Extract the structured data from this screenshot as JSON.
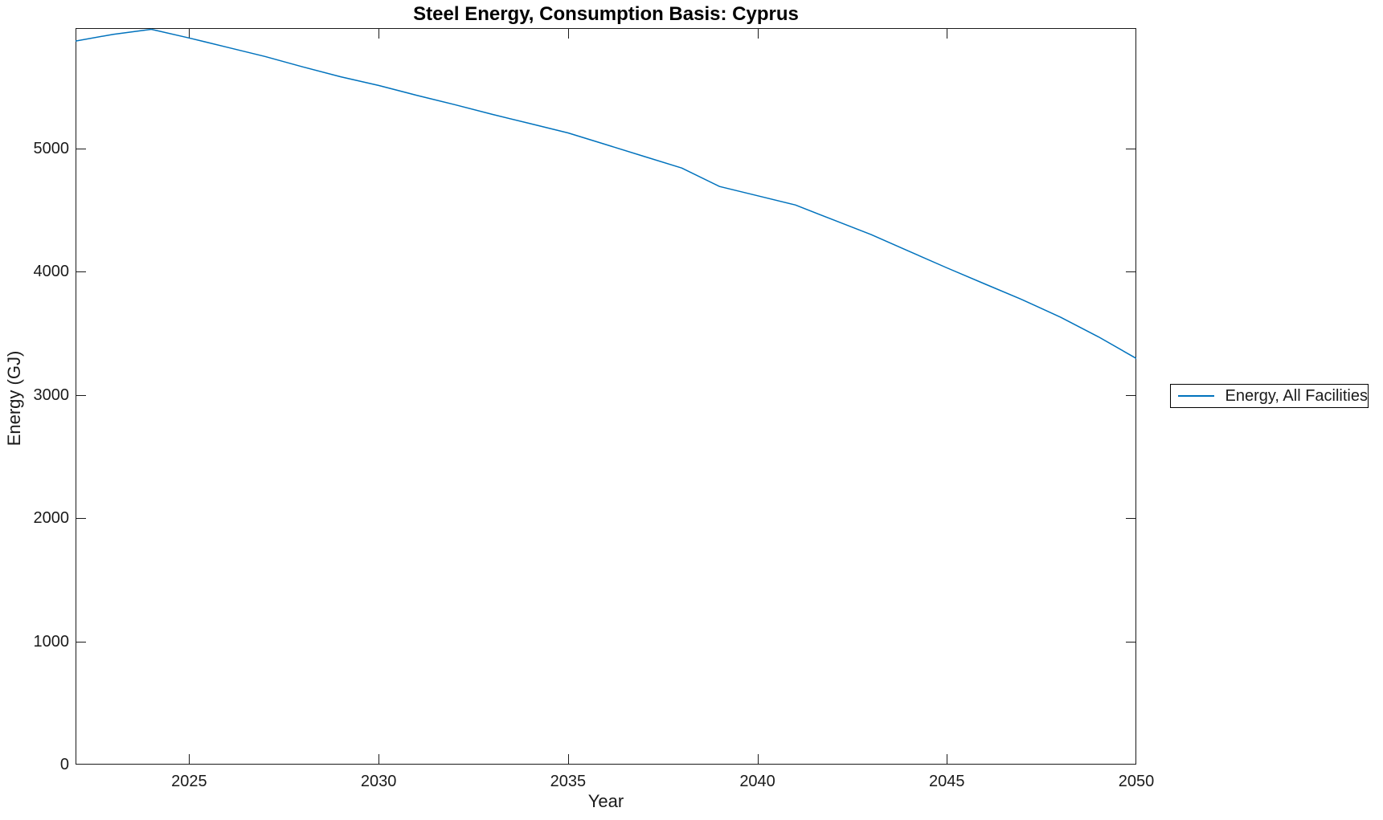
{
  "figure": {
    "title": "Steel Energy, Consumption Basis: Cyprus"
  },
  "chart_data": {
    "type": "line",
    "title": "Steel Energy, Consumption Basis: Cyprus",
    "xlabel": "Year",
    "ylabel": "Energy (GJ)",
    "xlim": [
      2022,
      2050
    ],
    "ylim": [
      0,
      5975
    ],
    "xticks": [
      2025,
      2030,
      2035,
      2040,
      2045,
      2050
    ],
    "yticks": [
      0,
      1000,
      2000,
      3000,
      4000,
      5000
    ],
    "grid": false,
    "legend_position": "outside-right",
    "line_color": "#0072BD",
    "axis_color": "#1a1a1a",
    "series": [
      {
        "name": "Energy, All Facilities",
        "x": [
          2022,
          2023,
          2024,
          2025,
          2026,
          2027,
          2028,
          2029,
          2030,
          2031,
          2032,
          2033,
          2034,
          2035,
          2036,
          2037,
          2038,
          2039,
          2040,
          2041,
          2042,
          2043,
          2044,
          2045,
          2046,
          2047,
          2048,
          2049,
          2050
        ],
        "values": [
          5870,
          5925,
          5965,
          5895,
          5820,
          5745,
          5660,
          5580,
          5510,
          5430,
          5355,
          5275,
          5200,
          5125,
          5030,
          4935,
          4840,
          4690,
          4615,
          4540,
          4420,
          4300,
          4165,
          4030,
          3900,
          3770,
          3630,
          3470,
          3295
        ]
      }
    ]
  },
  "legend": {
    "items": [
      {
        "label": "Energy, All Facilities",
        "color": "#0072BD"
      }
    ]
  }
}
